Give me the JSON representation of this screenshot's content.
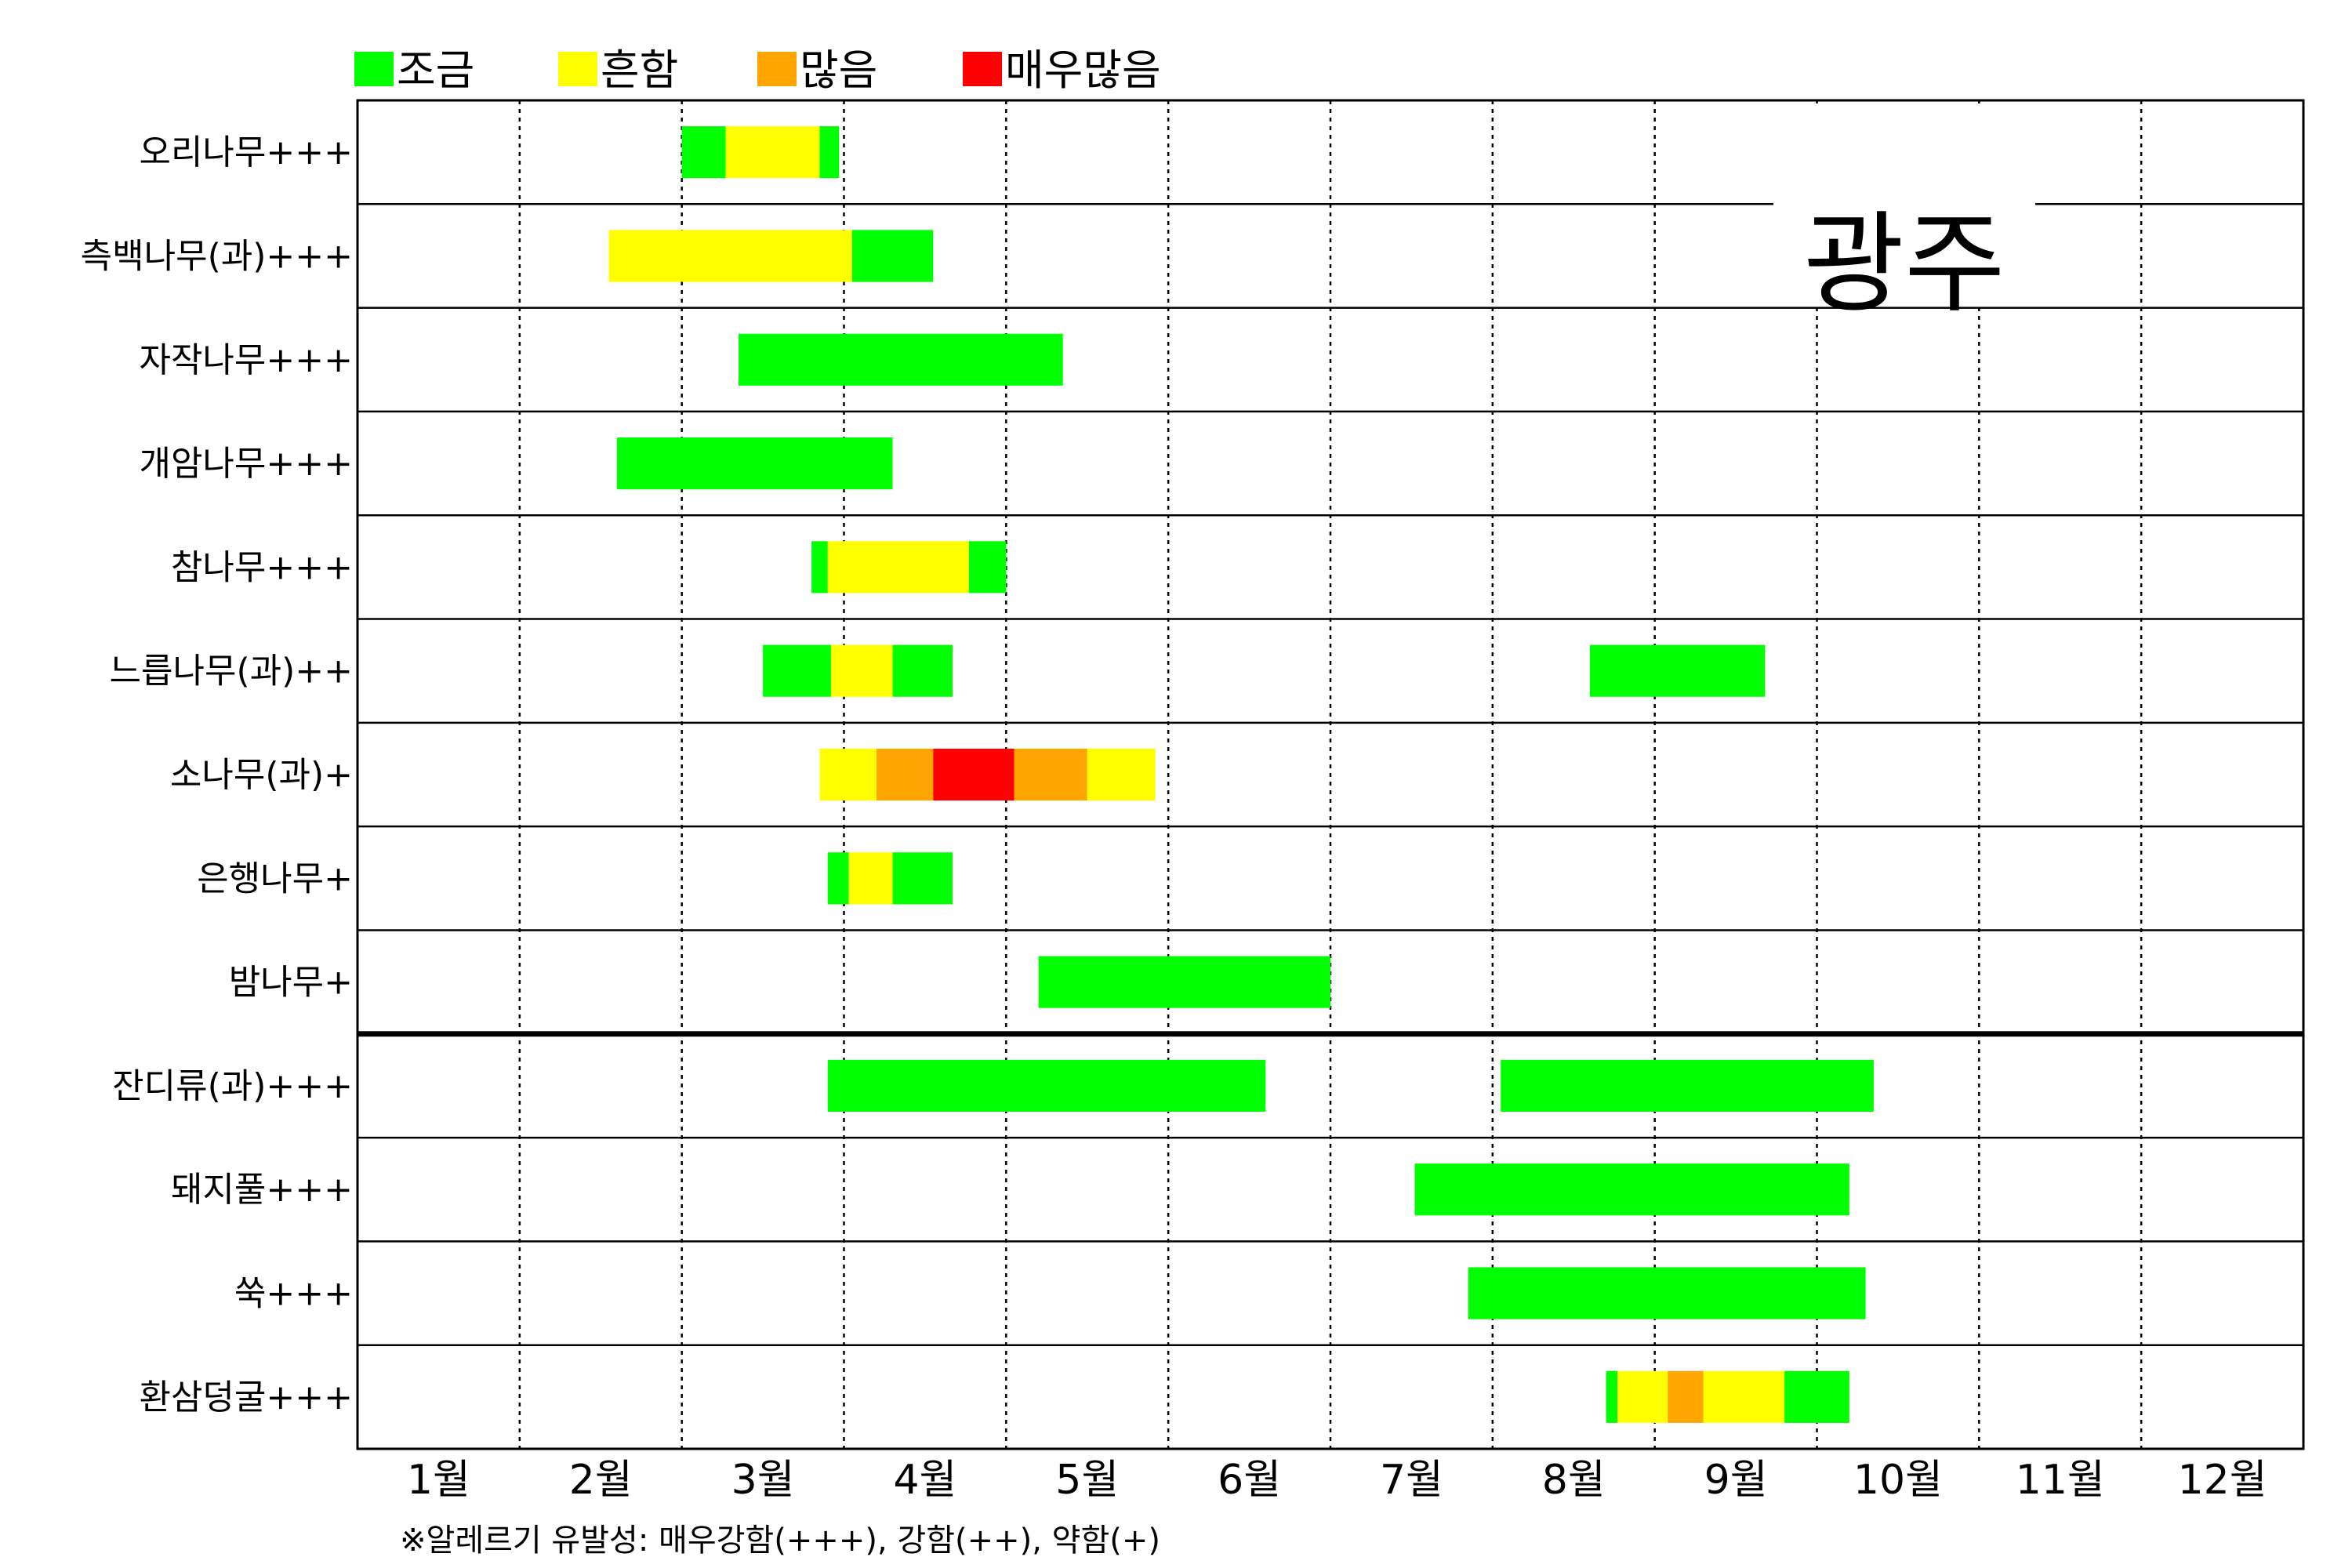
{
  "chart_data": {
    "type": "gantt",
    "title": "광주",
    "footnote": "※알레르기 유발성: 매우강함(+++), 강함(++), 약함(+)",
    "months": [
      "1월",
      "2월",
      "3월",
      "4월",
      "5월",
      "6월",
      "7월",
      "8월",
      "9월",
      "10월",
      "11월",
      "12월"
    ],
    "xlim": [
      1,
      13
    ],
    "grid": "dotted vertical lines between months",
    "legend_position": "top-left",
    "legend": [
      {
        "level": "low",
        "label": "조금",
        "color": "#00ff00"
      },
      {
        "level": "common",
        "label": "흔함",
        "color": "#ffff00"
      },
      {
        "level": "high",
        "label": "많음",
        "color": "#ffa500"
      },
      {
        "level": "very_high",
        "label": "매우많음",
        "color": "#ff0000"
      }
    ],
    "groups": [
      "trees",
      "weeds"
    ],
    "rows": [
      {
        "label": "오리나무+++",
        "group": "trees",
        "segments": [
          {
            "start": 3.0,
            "end": 3.27,
            "level": "low"
          },
          {
            "start": 3.27,
            "end": 3.85,
            "level": "common"
          },
          {
            "start": 3.85,
            "end": 3.97,
            "level": "low"
          }
        ]
      },
      {
        "label": "측백나무(과)+++",
        "group": "trees",
        "segments": [
          {
            "start": 2.55,
            "end": 4.05,
            "level": "common"
          },
          {
            "start": 4.05,
            "end": 4.55,
            "level": "low"
          }
        ]
      },
      {
        "label": "자작나무+++",
        "group": "trees",
        "segments": [
          {
            "start": 3.35,
            "end": 5.35,
            "level": "low"
          }
        ]
      },
      {
        "label": "개암나무+++",
        "group": "trees",
        "segments": [
          {
            "start": 2.6,
            "end": 4.3,
            "level": "low"
          }
        ]
      },
      {
        "label": "참나무+++",
        "group": "trees",
        "segments": [
          {
            "start": 3.8,
            "end": 3.9,
            "level": "low"
          },
          {
            "start": 3.9,
            "end": 4.77,
            "level": "common"
          },
          {
            "start": 4.77,
            "end": 5.0,
            "level": "low"
          }
        ]
      },
      {
        "label": "느릅나무(과)++",
        "group": "trees",
        "segments": [
          {
            "start": 3.5,
            "end": 3.92,
            "level": "low"
          },
          {
            "start": 3.92,
            "end": 4.3,
            "level": "common"
          },
          {
            "start": 4.3,
            "end": 4.67,
            "level": "low"
          },
          {
            "start": 8.6,
            "end": 9.68,
            "level": "low"
          }
        ]
      },
      {
        "label": "소나무(과)+",
        "group": "trees",
        "segments": [
          {
            "start": 3.85,
            "end": 4.2,
            "level": "common"
          },
          {
            "start": 4.2,
            "end": 4.55,
            "level": "high"
          },
          {
            "start": 4.55,
            "end": 5.05,
            "level": "very_high"
          },
          {
            "start": 5.05,
            "end": 5.5,
            "level": "high"
          },
          {
            "start": 5.5,
            "end": 5.92,
            "level": "common"
          }
        ]
      },
      {
        "label": "은행나무+",
        "group": "trees",
        "segments": [
          {
            "start": 3.9,
            "end": 4.03,
            "level": "low"
          },
          {
            "start": 4.03,
            "end": 4.3,
            "level": "common"
          },
          {
            "start": 4.3,
            "end": 4.67,
            "level": "low"
          }
        ]
      },
      {
        "label": "밤나무+",
        "group": "trees",
        "segments": [
          {
            "start": 5.2,
            "end": 7.0,
            "level": "low"
          }
        ]
      },
      {
        "label": "잔디류(과)+++",
        "group": "weeds",
        "segments": [
          {
            "start": 3.9,
            "end": 6.6,
            "level": "low"
          },
          {
            "start": 8.05,
            "end": 10.35,
            "level": "low"
          }
        ]
      },
      {
        "label": "돼지풀+++",
        "group": "weeds",
        "segments": [
          {
            "start": 7.52,
            "end": 10.2,
            "level": "low"
          }
        ]
      },
      {
        "label": "쑥+++",
        "group": "weeds",
        "segments": [
          {
            "start": 7.85,
            "end": 10.3,
            "level": "low"
          }
        ]
      },
      {
        "label": "환삼덩굴+++",
        "group": "weeds",
        "segments": [
          {
            "start": 8.7,
            "end": 8.77,
            "level": "low"
          },
          {
            "start": 8.77,
            "end": 9.08,
            "level": "common"
          },
          {
            "start": 9.08,
            "end": 9.3,
            "level": "high"
          },
          {
            "start": 9.3,
            "end": 9.8,
            "level": "common"
          },
          {
            "start": 9.8,
            "end": 10.2,
            "level": "low"
          }
        ]
      }
    ]
  }
}
